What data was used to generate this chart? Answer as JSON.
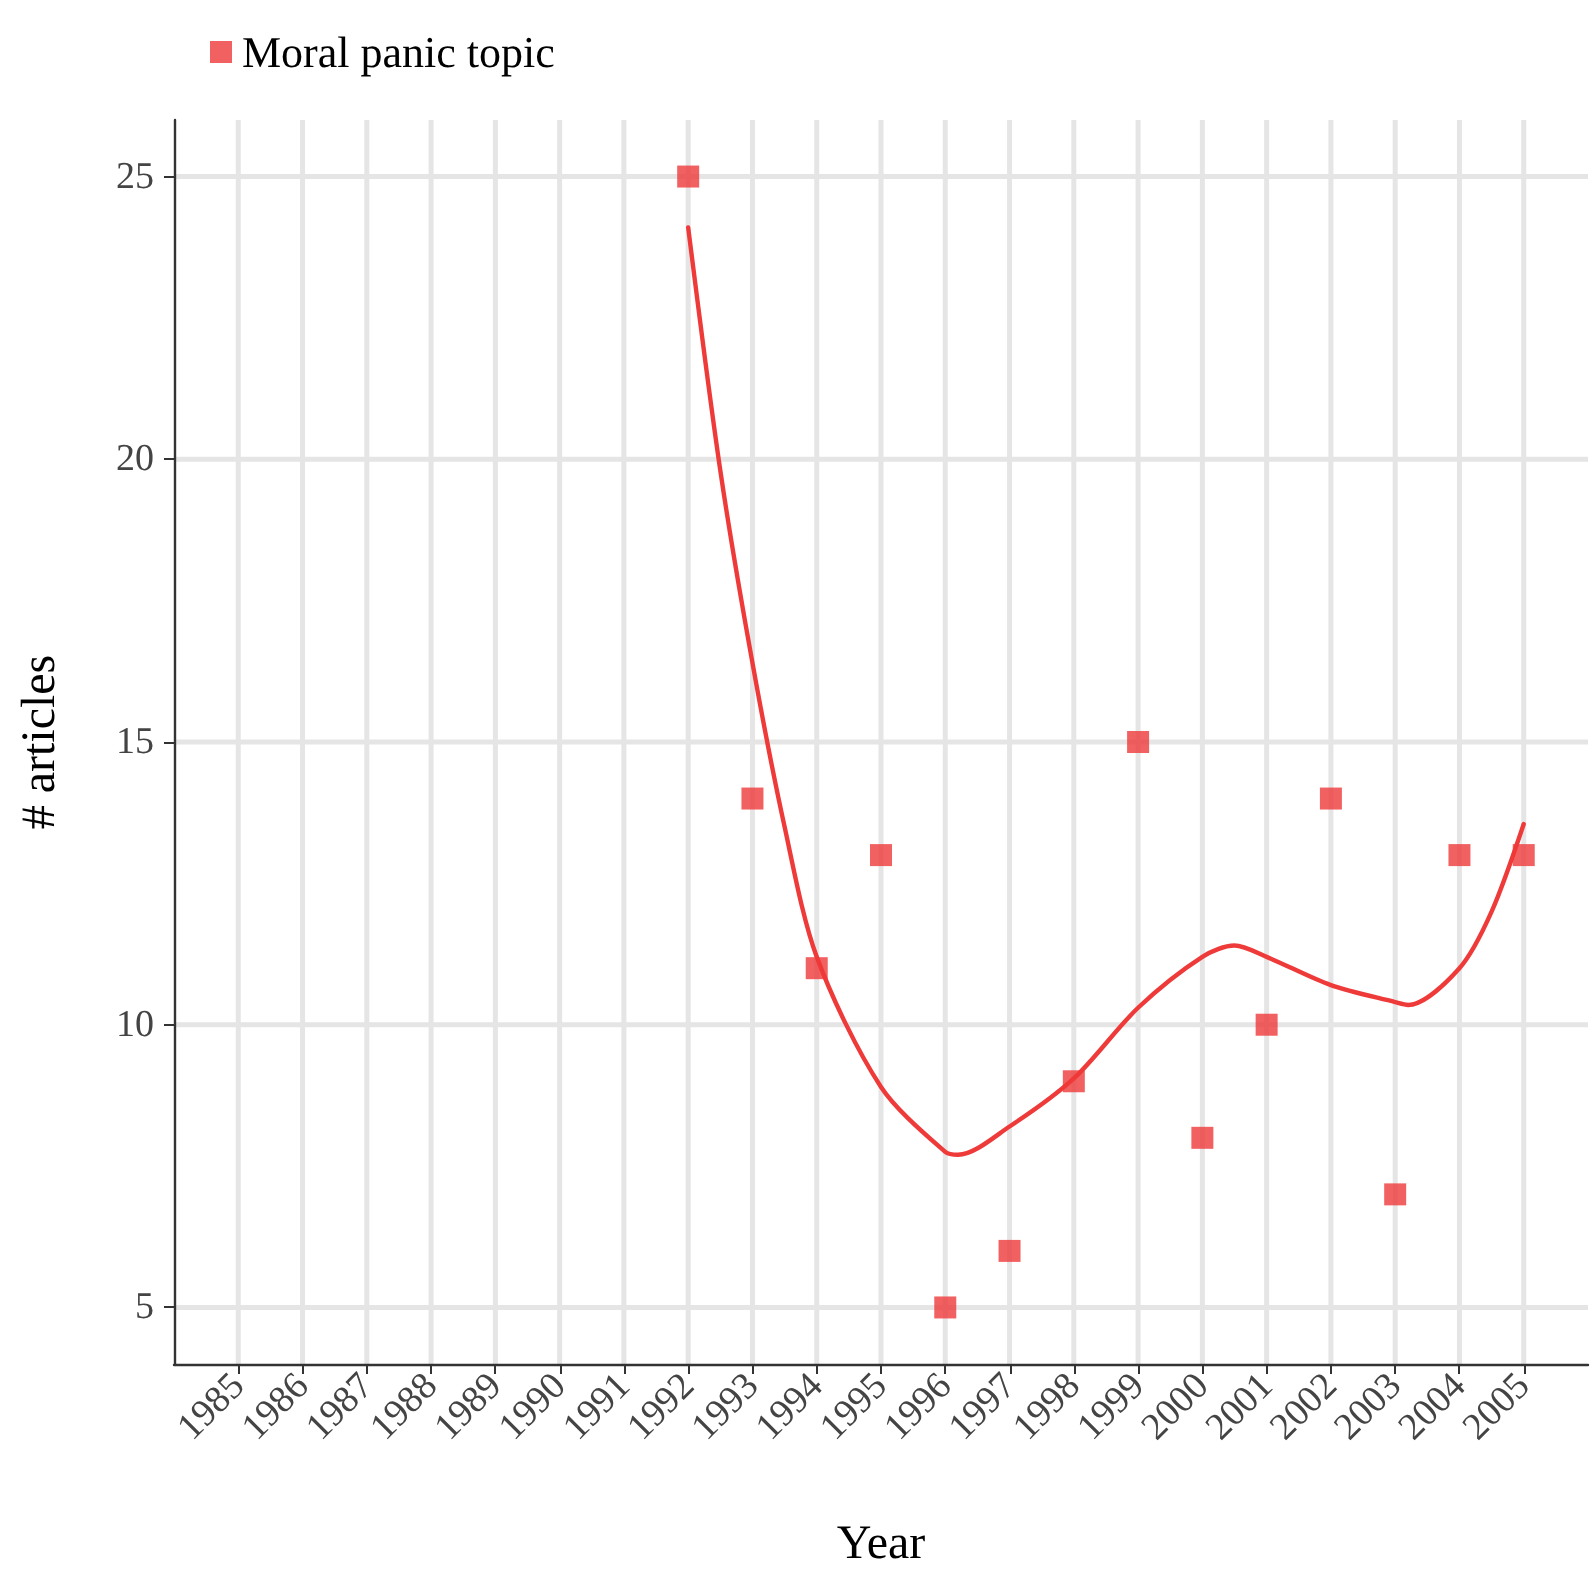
{
  "chart_data": {
    "type": "scatter",
    "xlabel": "Year",
    "ylabel": "# articles",
    "xlim": [
      1984,
      2006
    ],
    "xticks": [
      1985,
      1986,
      1987,
      1988,
      1989,
      1990,
      1991,
      1992,
      1993,
      1994,
      1995,
      1996,
      1997,
      1998,
      1999,
      2000,
      2001,
      2002,
      2003,
      2004,
      2005
    ],
    "ylim": [
      4,
      26
    ],
    "yticks": [
      5,
      10,
      15,
      20,
      25
    ],
    "grid": true,
    "legend": "top left",
    "marker": "square",
    "series": [
      {
        "name": "Moral panic topic",
        "color": "#ef3a3a",
        "x": [
          1992,
          1993,
          1994,
          1995,
          1996,
          1997,
          1998,
          1999,
          2000,
          2001,
          2002,
          2003,
          2004,
          2005
        ],
        "values": [
          25,
          14,
          11,
          13,
          5,
          6,
          9,
          15,
          8,
          10,
          14,
          7,
          13,
          13
        ]
      },
      {
        "type": "line",
        "color": "#ef3a3a",
        "marker": "none",
        "line_style": "solid",
        "x": [
          1992,
          1992.5,
          1993,
          1993.5,
          1994,
          1995,
          1996,
          1996.2,
          1997,
          1998,
          1999,
          2000,
          2000.5,
          2001,
          2002,
          2003,
          2003.2,
          2004,
          2004.5,
          2005
        ],
        "values": [
          24.1,
          19.8,
          16.4,
          13.5,
          11.2,
          8.9,
          7.75,
          7.7,
          8.2,
          9.05,
          10.3,
          11.2,
          11.4,
          11.2,
          10.7,
          10.4,
          10.35,
          11.0,
          12.0,
          13.55
        ]
      }
    ]
  }
}
